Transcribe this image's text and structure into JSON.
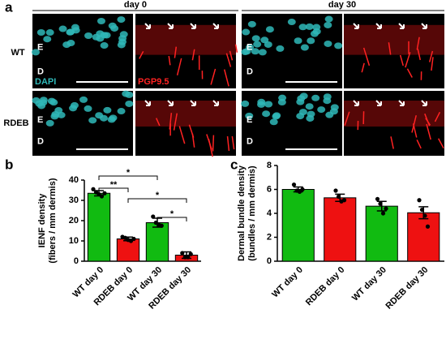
{
  "panel_labels": [
    "a",
    "b",
    "c"
  ],
  "micrographs": {
    "columns": [
      "day 0",
      "day 30"
    ],
    "rows": [
      "WT",
      "RDEB"
    ],
    "epidermis": "E",
    "dermis": "D",
    "stains": [
      "DAPI",
      "PGP9.5"
    ]
  },
  "chart_data": [
    {
      "type": "bar",
      "ylabel": [
        "IENF density",
        "(fibers / mm dermis)"
      ],
      "categories": [
        "WT day 0",
        "RDEB day 0",
        "WT day 30",
        "RDEB day 30"
      ],
      "values": [
        33.5,
        11,
        19,
        3
      ],
      "errors": [
        1.3,
        0.9,
        2.2,
        1.6
      ],
      "points": [
        [
          35.5,
          34,
          33,
          32,
          33.5
        ],
        [
          12,
          11.5,
          10.5,
          10,
          11
        ],
        [
          22,
          19,
          18,
          17.5
        ],
        [
          4,
          2,
          2,
          3.5
        ]
      ],
      "colors": [
        "#11bb11",
        "#ee1111",
        "#11bb11",
        "#ee1111"
      ],
      "ylim": [
        0,
        40
      ],
      "yticks": [
        0,
        10,
        20,
        30,
        40
      ],
      "significance": [
        {
          "text": "*",
          "from": "WT day 0",
          "to": "WT day 30"
        },
        {
          "text": "**",
          "from": "WT day 0",
          "to": "RDEB day 0"
        },
        {
          "text": "*",
          "from": "RDEB day 0",
          "to": "RDEB day 30"
        },
        {
          "text": "*",
          "from": "WT day 30",
          "to": "RDEB day 30"
        }
      ]
    },
    {
      "type": "bar",
      "ylabel": [
        "Dermal bundle density",
        "(bundles / mm dermis)"
      ],
      "categories": [
        "WT day 0",
        "RDEB day 0",
        "WT day 30",
        "RDEB day 30"
      ],
      "values": [
        6.0,
        5.3,
        4.6,
        4.05
      ],
      "errors": [
        0.2,
        0.3,
        0.4,
        0.5
      ],
      "points": [
        [
          6.4,
          5.9,
          5.8,
          6.0
        ],
        [
          5.9,
          5.4,
          5.0,
          5.1
        ],
        [
          5.2,
          4.8,
          4.0,
          4.4
        ],
        [
          5.1,
          4.3,
          3.8,
          2.9
        ]
      ],
      "colors": [
        "#11bb11",
        "#ee1111",
        "#11bb11",
        "#ee1111"
      ],
      "ylim": [
        0,
        8
      ],
      "yticks": [
        0,
        2,
        4,
        6,
        8
      ],
      "significance": []
    }
  ]
}
